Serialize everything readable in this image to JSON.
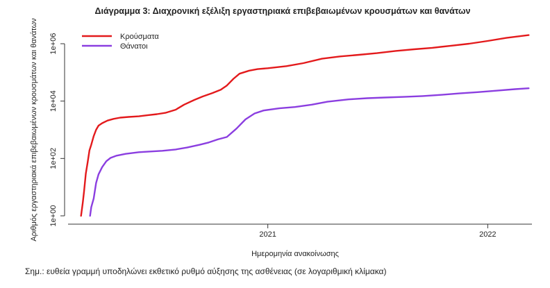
{
  "chart_data": {
    "type": "line",
    "title": "Διάγραμμα 3: Διαχρονική εξέλιξη εργαστηριακά επιβεβαιωμένων κρουσμάτων και θανάτων",
    "xlabel": "Ημερομηνία ανακοίνωσης",
    "ylabel": "Αριθμός εργαστηριακά επιβεβαιωμένων κρουσμάτων και θανάτων",
    "y_scale": "log10",
    "ylim": [
      1,
      2500000
    ],
    "xlim": [
      "2020-02-01",
      "2022-03-20"
    ],
    "x_ticks": [
      {
        "date": "2021-01-01",
        "label": "2021"
      },
      {
        "date": "2022-01-01",
        "label": "2022"
      }
    ],
    "y_ticks": [
      {
        "value": 1,
        "label": "1e+00"
      },
      {
        "value": 100,
        "label": "1e+02"
      },
      {
        "value": 10000,
        "label": "1e+04"
      },
      {
        "value": 1000000,
        "label": "1e+06"
      }
    ],
    "legend_position": "top-left",
    "series": [
      {
        "name": "Κρούσματα",
        "color": "#e31a1c",
        "points": [
          [
            "2020-02-26",
            1
          ],
          [
            "2020-02-29",
            3
          ],
          [
            "2020-03-02",
            7
          ],
          [
            "2020-03-05",
            30
          ],
          [
            "2020-03-08",
            73
          ],
          [
            "2020-03-11",
            190
          ],
          [
            "2020-03-14",
            300
          ],
          [
            "2020-03-18",
            600
          ],
          [
            "2020-03-22",
            1000
          ],
          [
            "2020-03-26",
            1400
          ],
          [
            "2020-04-01",
            1700
          ],
          [
            "2020-04-10",
            2100
          ],
          [
            "2020-04-20",
            2400
          ],
          [
            "2020-05-01",
            2650
          ],
          [
            "2020-05-15",
            2800
          ],
          [
            "2020-06-01",
            2950
          ],
          [
            "2020-06-15",
            3200
          ],
          [
            "2020-07-01",
            3500
          ],
          [
            "2020-07-15",
            3900
          ],
          [
            "2020-08-01",
            5000
          ],
          [
            "2020-08-15",
            7500
          ],
          [
            "2020-09-01",
            11000
          ],
          [
            "2020-09-15",
            14500
          ],
          [
            "2020-10-01",
            19000
          ],
          [
            "2020-10-15",
            25000
          ],
          [
            "2020-10-25",
            35000
          ],
          [
            "2020-11-05",
            60000
          ],
          [
            "2020-11-15",
            90000
          ],
          [
            "2020-12-01",
            115000
          ],
          [
            "2020-12-15",
            130000
          ],
          [
            "2021-01-01",
            140000
          ],
          [
            "2021-02-01",
            165000
          ],
          [
            "2021-03-01",
            210000
          ],
          [
            "2021-04-01",
            300000
          ],
          [
            "2021-05-01",
            360000
          ],
          [
            "2021-06-01",
            410000
          ],
          [
            "2021-07-01",
            470000
          ],
          [
            "2021-08-01",
            560000
          ],
          [
            "2021-09-01",
            640000
          ],
          [
            "2021-10-01",
            720000
          ],
          [
            "2021-11-01",
            850000
          ],
          [
            "2021-12-01",
            1000000
          ],
          [
            "2022-01-01",
            1250000
          ],
          [
            "2022-02-01",
            1600000
          ],
          [
            "2022-03-10",
            2000000
          ]
        ]
      },
      {
        "name": "Θάνατοι",
        "color": "#8b3ee0",
        "points": [
          [
            "2020-03-12",
            1
          ],
          [
            "2020-03-14",
            2
          ],
          [
            "2020-03-18",
            4
          ],
          [
            "2020-03-22",
            14
          ],
          [
            "2020-03-26",
            28
          ],
          [
            "2020-04-01",
            50
          ],
          [
            "2020-04-08",
            80
          ],
          [
            "2020-04-15",
            105
          ],
          [
            "2020-04-25",
            125
          ],
          [
            "2020-05-10",
            145
          ],
          [
            "2020-06-01",
            165
          ],
          [
            "2020-06-20",
            175
          ],
          [
            "2020-07-10",
            185
          ],
          [
            "2020-08-01",
            205
          ],
          [
            "2020-08-20",
            240
          ],
          [
            "2020-09-10",
            300
          ],
          [
            "2020-09-25",
            360
          ],
          [
            "2020-10-10",
            460
          ],
          [
            "2020-10-25",
            560
          ],
          [
            "2020-11-10",
            1100
          ],
          [
            "2020-11-25",
            2300
          ],
          [
            "2020-12-10",
            3700
          ],
          [
            "2020-12-25",
            4700
          ],
          [
            "2021-01-20",
            5600
          ],
          [
            "2021-02-15",
            6200
          ],
          [
            "2021-03-15",
            7500
          ],
          [
            "2021-04-10",
            9500
          ],
          [
            "2021-05-15",
            11500
          ],
          [
            "2021-06-15",
            12600
          ],
          [
            "2021-07-15",
            13300
          ],
          [
            "2021-08-15",
            14000
          ],
          [
            "2021-09-15",
            15000
          ],
          [
            "2021-10-15",
            16500
          ],
          [
            "2021-11-15",
            18500
          ],
          [
            "2021-12-15",
            20500
          ],
          [
            "2022-01-15",
            23000
          ],
          [
            "2022-02-15",
            26000
          ],
          [
            "2022-03-10",
            28000
          ]
        ]
      }
    ]
  },
  "footnote": "Σημ.: ευθεία γραμμή υποδηλώνει εκθετικό ρυθμό αύξησης της ασθένειας (σε λογαριθμική κλίμακα)"
}
